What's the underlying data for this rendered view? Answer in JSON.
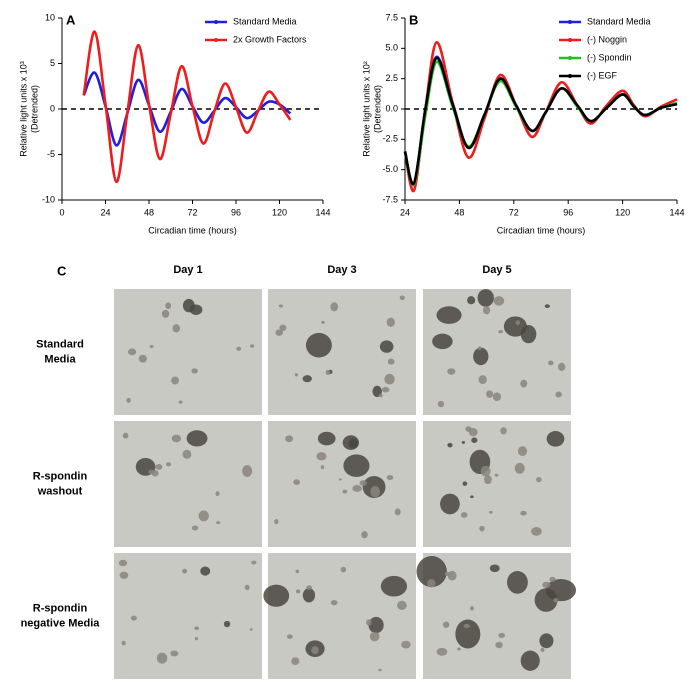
{
  "chart_data": [
    {
      "type": "line",
      "panel_label": "A",
      "xlabel": "Circadian time (hours)",
      "ylabel": [
        "Relative light units x 10³",
        "(Detrended)"
      ],
      "x": [
        12,
        18,
        24,
        30,
        36,
        42,
        48,
        54,
        60,
        66,
        72,
        78,
        84,
        90,
        96,
        102,
        108,
        114,
        120,
        126
      ],
      "series": [
        {
          "name": "Standard Media",
          "color": "#1f1fe0",
          "values": [
            1.5,
            4,
            0.3,
            -4,
            -0.5,
            3.2,
            0.4,
            -2.5,
            -0.3,
            2.2,
            0.3,
            -1.5,
            -0.2,
            1.2,
            0.2,
            -1,
            -0.2,
            0.8,
            0.5,
            -0.5
          ]
        },
        {
          "name": "2x Growth Factors",
          "color": "#ee1c1c",
          "values": [
            1.5,
            8.5,
            0.5,
            -8,
            -0.5,
            7,
            0.5,
            -5.5,
            -0.5,
            4.7,
            0.3,
            -3.8,
            -0.3,
            2.8,
            0.2,
            -2.6,
            -0.3,
            1.9,
            0.5,
            -1.2
          ]
        }
      ],
      "xlim": [
        0,
        144
      ],
      "xticks": [
        0,
        24,
        48,
        72,
        96,
        120,
        144
      ],
      "ylim": [
        -10,
        10
      ],
      "yticks": [
        -10,
        -5,
        0,
        5,
        10
      ],
      "zero_line": true,
      "legend": "upper right"
    },
    {
      "type": "line",
      "panel_label": "B",
      "xlabel": "Circadian time (hours)",
      "ylabel": [
        "Relative light units x 10²",
        "(Detrended)"
      ],
      "x": [
        24,
        28,
        33,
        38,
        45,
        52,
        59,
        66,
        73,
        80,
        86,
        93,
        100,
        106,
        113,
        120,
        125,
        130,
        137,
        144
      ],
      "series": [
        {
          "name": "Standard Media",
          "color": "#1f1fe0",
          "values": [
            -3.5,
            -6.2,
            0,
            4.3,
            0.5,
            -3.2,
            -0.5,
            2.5,
            0.3,
            -1.8,
            -0.3,
            1.7,
            0.3,
            -1,
            0.1,
            1.2,
            0.2,
            -0.5,
            0.1,
            0.4
          ]
        },
        {
          "name": "(-) Noggin",
          "color": "#ee1c1c",
          "values": [
            -3.5,
            -6.7,
            0,
            5.5,
            0.5,
            -4,
            -0.8,
            2.8,
            0.3,
            -2.3,
            -0.3,
            2.2,
            0.3,
            -1.2,
            0.3,
            1.5,
            0.3,
            -0.6,
            0.2,
            0.8
          ]
        },
        {
          "name": "(-) Spondin",
          "color": "#22c022",
          "values": [
            -3.5,
            -6.2,
            -0.5,
            3.9,
            0.2,
            -3.1,
            -0.5,
            2.3,
            0.2,
            -1.8,
            -0.3,
            1.7,
            0.2,
            -1,
            0.1,
            1.2,
            0.2,
            -0.5,
            0.1,
            0.5
          ]
        },
        {
          "name": "(-) EGF",
          "color": "#000000",
          "values": [
            -3.5,
            -6.1,
            0,
            4.2,
            0.4,
            -3.2,
            -0.5,
            2.5,
            0.3,
            -1.8,
            -0.3,
            1.7,
            0.3,
            -1,
            0.1,
            1.2,
            0.2,
            -0.5,
            0.1,
            0.4
          ]
        }
      ],
      "xlim": [
        24,
        144
      ],
      "xticks": [
        24,
        48,
        72,
        96,
        120,
        144
      ],
      "ylim": [
        -7.5,
        7.5
      ],
      "yticks": [
        -7.5,
        {
          "value": -5,
          "label": "-5.0"
        },
        {
          "value": -2.5,
          "label": "-2.5"
        },
        {
          "value": 0,
          "label": "0.0"
        },
        {
          "value": 2.5,
          "label": "2.5"
        },
        {
          "value": 5,
          "label": "5.0"
        },
        7.5
      ],
      "zero_line": true,
      "legend": "upper right"
    }
  ],
  "panel_c": {
    "label": "C",
    "columns": [
      "Day 1",
      "Day 3",
      "Day 5"
    ],
    "rows": [
      [
        "Standard",
        "Media"
      ],
      [
        "R-spondin",
        "washout"
      ],
      [
        "R-spondin",
        "negative Media"
      ]
    ]
  }
}
